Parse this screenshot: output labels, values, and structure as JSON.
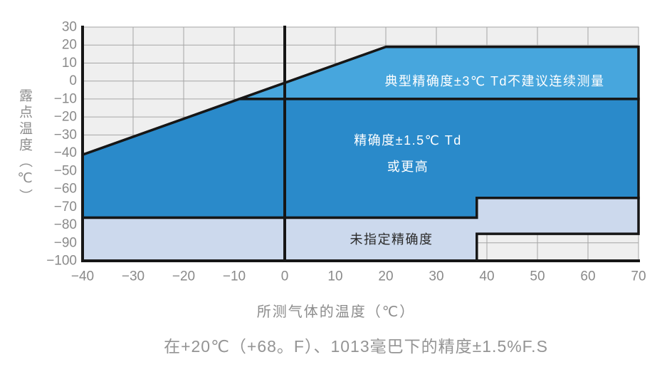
{
  "chart_data": {
    "type": "area",
    "xlabel": "所测气体的温度（℃）",
    "ylabel": "露点温度（℃）",
    "caption": "在+20℃（+68。F）、1013毫巴下的精度±1.5%F.S",
    "x_range": [
      -40,
      70
    ],
    "y_range": [
      -100,
      30
    ],
    "x_ticks": [
      -40,
      -30,
      -20,
      -10,
      0,
      10,
      20,
      30,
      40,
      50,
      60,
      70
    ],
    "y_ticks": [
      30,
      20,
      10,
      0,
      -10,
      -20,
      -30,
      -40,
      -50,
      -60,
      -70,
      -80,
      -90,
      -100
    ],
    "grid": true,
    "legend": "none",
    "colors": {
      "plot_background": "#efefef",
      "grid_line": "#a6a6a6",
      "frame_line": "#161616",
      "tick_text": "#8a8a8a",
      "axis_title": "#8c8c8c",
      "caption_text": "#949494"
    },
    "regions": [
      {
        "name": "typical-accuracy",
        "label": "典型精确度±3℃ Td不建议连续测量",
        "label_color": "#ffffff",
        "color": "#47a6dd",
        "points": [
          [
            -9,
            -10
          ],
          [
            20,
            19
          ],
          [
            70,
            19
          ],
          [
            70,
            -10
          ]
        ]
      },
      {
        "name": "high-accuracy",
        "label": "精确度±1.5℃ Td 或更高",
        "label_lines": [
          "精确度±1.5℃ Td",
          "或更高"
        ],
        "label_color": "#ffffff",
        "color": "#2a8aca",
        "points": [
          [
            -40,
            -41
          ],
          [
            -9,
            -10
          ],
          [
            70,
            -10
          ],
          [
            70,
            -65
          ],
          [
            38,
            -65
          ],
          [
            38,
            -76
          ],
          [
            -40,
            -76
          ]
        ]
      },
      {
        "name": "unspecified-accuracy",
        "label": "未指定精确度",
        "label_color": "#2b2b2b",
        "color": "#ccd9ed",
        "points": [
          [
            -40,
            -76
          ],
          [
            38,
            -76
          ],
          [
            38,
            -65
          ],
          [
            70,
            -65
          ],
          [
            70,
            -85
          ],
          [
            38,
            -85
          ],
          [
            38,
            -100
          ],
          [
            -40,
            -100
          ]
        ]
      }
    ],
    "reference_lines": [
      {
        "name": "zero-temperature-line",
        "orientation": "vertical",
        "x": 0
      }
    ]
  }
}
